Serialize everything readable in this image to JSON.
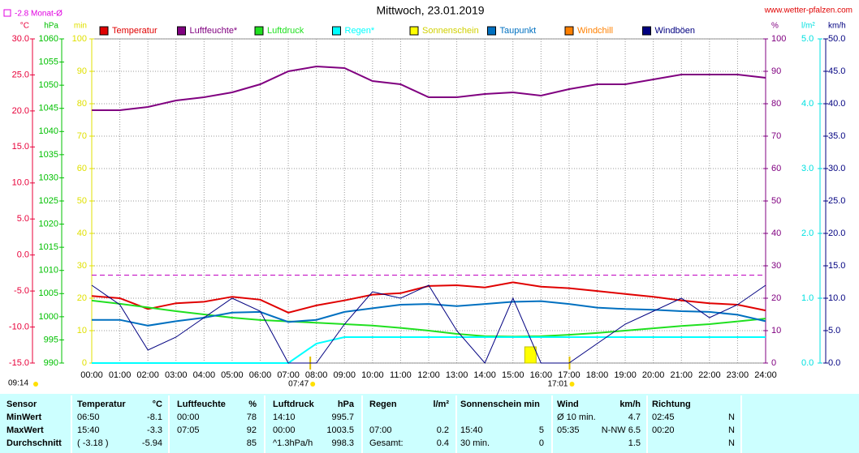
{
  "chart_data": {
    "type": "line",
    "title": "Mittwoch, 23.01.2019",
    "source": "www.wetter-pfalzen.com",
    "time": "09:14",
    "sunrise": "07:47",
    "sunset": "17:01",
    "month_average": {
      "label": "-2.8 Monat-Ø",
      "value": -2.8
    },
    "categories": [
      "00:00",
      "01:00",
      "02:00",
      "03:00",
      "04:00",
      "05:00",
      "06:00",
      "07:00",
      "08:00",
      "09:00",
      "10:00",
      "11:00",
      "12:00",
      "13:00",
      "14:00",
      "15:00",
      "16:00",
      "17:00",
      "18:00",
      "19:00",
      "20:00",
      "21:00",
      "22:00",
      "23:00",
      "24:00"
    ],
    "grid": true,
    "axes": [
      {
        "unit": "°C",
        "color": "#e8003a",
        "lim": [
          -15,
          30
        ],
        "ticks": [
          {
            "value": -15,
            "label": "-15.0"
          },
          {
            "value": -10,
            "label": "-10.0"
          },
          {
            "value": -5,
            "label": "-5.0"
          },
          {
            "value": 0,
            "label": "0.0"
          },
          {
            "value": 5,
            "label": "5.0"
          },
          {
            "value": 10,
            "label": "10.0"
          },
          {
            "value": 15,
            "label": "15.0"
          },
          {
            "value": 20,
            "label": "20.0"
          },
          {
            "value": 25,
            "label": "25.0"
          },
          {
            "value": 30,
            "label": "30.0"
          }
        ]
      },
      {
        "unit": "hPa",
        "color": "#00c000",
        "lim": [
          990,
          1060
        ],
        "ticks": [
          990,
          995,
          1000,
          1005,
          1010,
          1015,
          1020,
          1025,
          1030,
          1035,
          1040,
          1045,
          1050,
          1055,
          1060
        ]
      },
      {
        "unit": "min",
        "color": "#e0e000",
        "lim": [
          0,
          100
        ],
        "ticks": [
          0,
          10,
          20,
          30,
          40,
          50,
          60,
          70,
          80,
          90,
          100
        ]
      },
      {
        "unit": "%",
        "color": "#800080",
        "lim": [
          0,
          100
        ],
        "ticks": [
          0,
          10,
          20,
          30,
          40,
          50,
          60,
          70,
          80,
          90,
          100
        ]
      },
      {
        "unit": "l/m²",
        "color": "#00e0e0",
        "lim": [
          0,
          5
        ],
        "ticks": [
          {
            "value": 0,
            "label": "0.0"
          },
          {
            "value": 1,
            "label": "1.0"
          },
          {
            "value": 2,
            "label": "2.0"
          },
          {
            "value": 3,
            "label": "3.0"
          },
          {
            "value": 4,
            "label": "4.0"
          },
          {
            "value": 5,
            "label": "5.0"
          }
        ]
      },
      {
        "unit": "km/h",
        "color": "#000080",
        "lim": [
          0,
          50
        ],
        "ticks": [
          {
            "value": 0,
            "label": "0.0"
          },
          {
            "value": 5,
            "label": "5.0"
          },
          {
            "value": 10,
            "label": "10.0"
          },
          {
            "value": 15,
            "label": "15.0"
          },
          {
            "value": 20,
            "label": "20.0"
          },
          {
            "value": 25,
            "label": "25.0"
          },
          {
            "value": 30,
            "label": "30.0"
          },
          {
            "value": 35,
            "label": "35.0"
          },
          {
            "value": 40,
            "label": "40.0"
          },
          {
            "value": 45,
            "label": "45.0"
          },
          {
            "value": 50,
            "label": "50.0"
          }
        ]
      }
    ],
    "series": [
      {
        "name": "Temperatur",
        "color": "#e00000",
        "axis": 0,
        "values": [
          -5.7,
          -6.0,
          -7.5,
          -6.7,
          -6.5,
          -5.8,
          -6.2,
          -8.0,
          -7.0,
          -6.3,
          -5.5,
          -5.3,
          -4.3,
          -4.2,
          -4.5,
          -3.8,
          -4.4,
          -4.6,
          -5.0,
          -5.4,
          -5.8,
          -6.3,
          -6.7,
          -6.9,
          -7.7
        ]
      },
      {
        "name": "Luftfeuchte*",
        "color": "#800080",
        "axis": 3,
        "values": [
          78,
          78,
          79,
          81,
          82,
          83.5,
          86,
          90,
          91.5,
          91,
          87,
          86,
          82,
          82,
          83,
          83.5,
          82.5,
          84.5,
          86,
          86,
          87.5,
          89,
          89,
          89,
          88
        ]
      },
      {
        "name": "Luftdruck",
        "color": "#20e020",
        "axis": 1,
        "values": [
          1003.5,
          1002.8,
          1002,
          1001.2,
          1000.5,
          999.8,
          999.3,
          999,
          998.7,
          998.4,
          998.1,
          997.6,
          997,
          996.3,
          995.8,
          995.7,
          995.8,
          996.1,
          996.5,
          997,
          997.5,
          998,
          998.4,
          999,
          999.6
        ]
      },
      {
        "name": "Regen*",
        "color": "#00ffff",
        "axis": 4,
        "values": [
          0,
          0,
          0,
          0,
          0,
          0,
          0,
          0,
          0.3,
          0.4,
          0.4,
          0.4,
          0.4,
          0.4,
          0.4,
          0.4,
          0.4,
          0.4,
          0.4,
          0.4,
          0.4,
          0.4,
          0.4,
          0.4,
          0.4
        ]
      },
      {
        "name": "Sonnenschein",
        "color": "#ffff00",
        "axis": 2,
        "values": [
          0,
          0,
          0,
          0,
          0,
          0,
          0,
          0,
          0,
          0,
          0,
          0,
          0,
          0,
          0,
          0,
          5,
          0,
          0,
          0,
          0,
          0,
          0,
          0,
          0
        ]
      },
      {
        "name": "Taupunkt",
        "color": "#0070c0",
        "axis": 0,
        "values": [
          -9.0,
          -9.0,
          -9.8,
          -9.2,
          -8.7,
          -8.0,
          -7.9,
          -9.3,
          -9.0,
          -7.9,
          -7.4,
          -6.9,
          -6.8,
          -7.1,
          -6.8,
          -6.5,
          -6.4,
          -6.8,
          -7.3,
          -7.5,
          -7.6,
          -7.8,
          -7.9,
          -8.3,
          -9.2
        ]
      },
      {
        "name": "Windchill",
        "color": "#ff8000",
        "axis": 0,
        "values": [
          null,
          null,
          null,
          null,
          null,
          null,
          null,
          null,
          null,
          null,
          null,
          null,
          null,
          null,
          null,
          null,
          null,
          null,
          null,
          null,
          null,
          null,
          null,
          null,
          null
        ]
      },
      {
        "name": "Windböen",
        "color": "#000080",
        "axis": 5,
        "values": [
          12,
          9,
          2,
          4,
          7,
          10,
          8,
          0,
          0,
          6,
          11,
          10,
          12,
          5,
          0,
          10,
          0,
          0,
          3,
          6,
          8,
          10,
          7,
          9,
          12
        ]
      }
    ]
  },
  "table": {
    "header": [
      "Sensor",
      "Temperatur",
      "°C",
      "Luftfeuchte",
      "%",
      "Luftdruck",
      "hPa",
      "Regen",
      "l/m²",
      "Sonnenschein min",
      null,
      "Wind",
      "km/h",
      "Richtung",
      null
    ],
    "rows": [
      [
        "MinWert",
        "06:50",
        "-8.1",
        "00:00",
        "78",
        "14:10",
        "995.7",
        null,
        null,
        null,
        null,
        "Ø 10 min.",
        "4.7",
        "02:45",
        "N"
      ],
      [
        "MaxWert",
        "15:40",
        "-3.3",
        "07:05",
        "92",
        "00:00",
        "1003.5",
        "07:00",
        "0.2",
        "15:40",
        "5",
        "05:35",
        "N-NW 6.5",
        "00:20",
        "N"
      ],
      [
        "Durchschnitt",
        "( -3.18 )",
        "-5.94",
        null,
        "85",
        "^1.3hPa/h",
        "998.3",
        "Gesamt:",
        "0.4",
        "30 min.",
        "0",
        null,
        "1.5",
        null,
        "N"
      ]
    ]
  }
}
